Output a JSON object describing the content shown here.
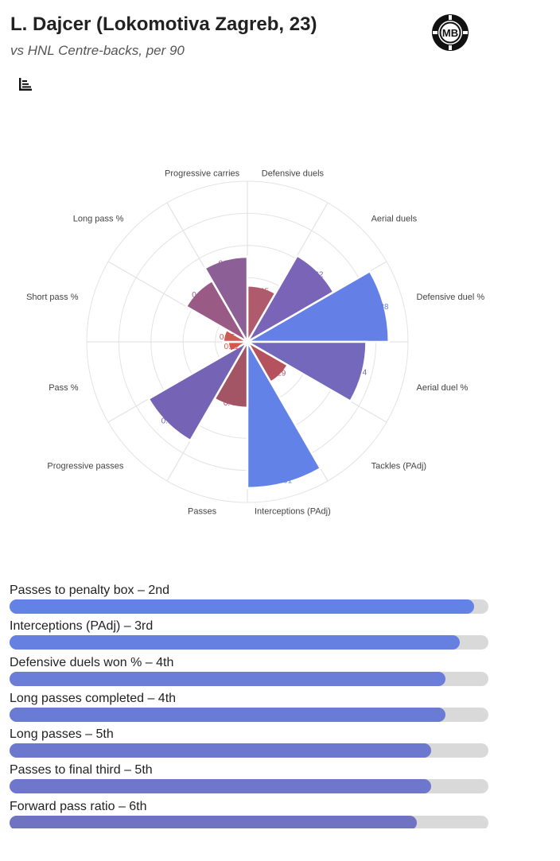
{
  "header": {
    "title": "L. Dajcer (Lokomotiva Zagreb, 23)",
    "subtitle": "vs HNL Centre-backs, per 90",
    "logo_text": "MB"
  },
  "chart_data": [
    {
      "type": "polar-bar",
      "axes_labels": [
        "Defensive duels",
        "Aerial duels",
        "Defensive duel %",
        "Aerial duel %",
        "Tackles (PAdj)",
        "Interceptions (PAdj)",
        "Passes",
        "Progressive passes",
        "Pass %",
        "Short pass %",
        "Long pass %",
        "Progressive carries"
      ],
      "values": [
        0.35,
        0.62,
        0.88,
        0.74,
        0.29,
        0.91,
        0.41,
        0.71,
        0.12,
        0.15,
        0.44,
        0.53
      ],
      "value_labels": [
        "0.35",
        "0.62",
        "0.88",
        "0.74",
        "0.29",
        "0.91",
        "0.41",
        "0.71",
        "0.12",
        "0.15",
        "0.44",
        "0.53"
      ],
      "colors": [
        "#b05a6e",
        "#7a64b8",
        "#6480e6",
        "#7468bd",
        "#b5525e",
        "#6382e8",
        "#a35465",
        "#7564b5",
        "#d9534f",
        "#cc5b55",
        "#9a5a86",
        "#8c5f97"
      ],
      "rmax": 1,
      "grid": true
    },
    {
      "type": "bar",
      "orientation": "horizontal",
      "categories": [
        "Passes to penalty box – 2nd",
        "Interceptions (PAdj) – 3rd",
        "Defensive duels won % – 4th",
        "Long passes completed – 4th",
        "Long passes – 5th",
        "Passes to final third – 5th",
        "Forward pass ratio – 6th"
      ],
      "values": [
        0.97,
        0.94,
        0.91,
        0.91,
        0.88,
        0.88,
        0.85
      ],
      "colors": [
        "#6382e6",
        "#6680e1",
        "#697dd9",
        "#6a7bd5",
        "#6c78ce",
        "#6e77cb",
        "#7072c2"
      ],
      "xlim": [
        0,
        1
      ]
    }
  ]
}
